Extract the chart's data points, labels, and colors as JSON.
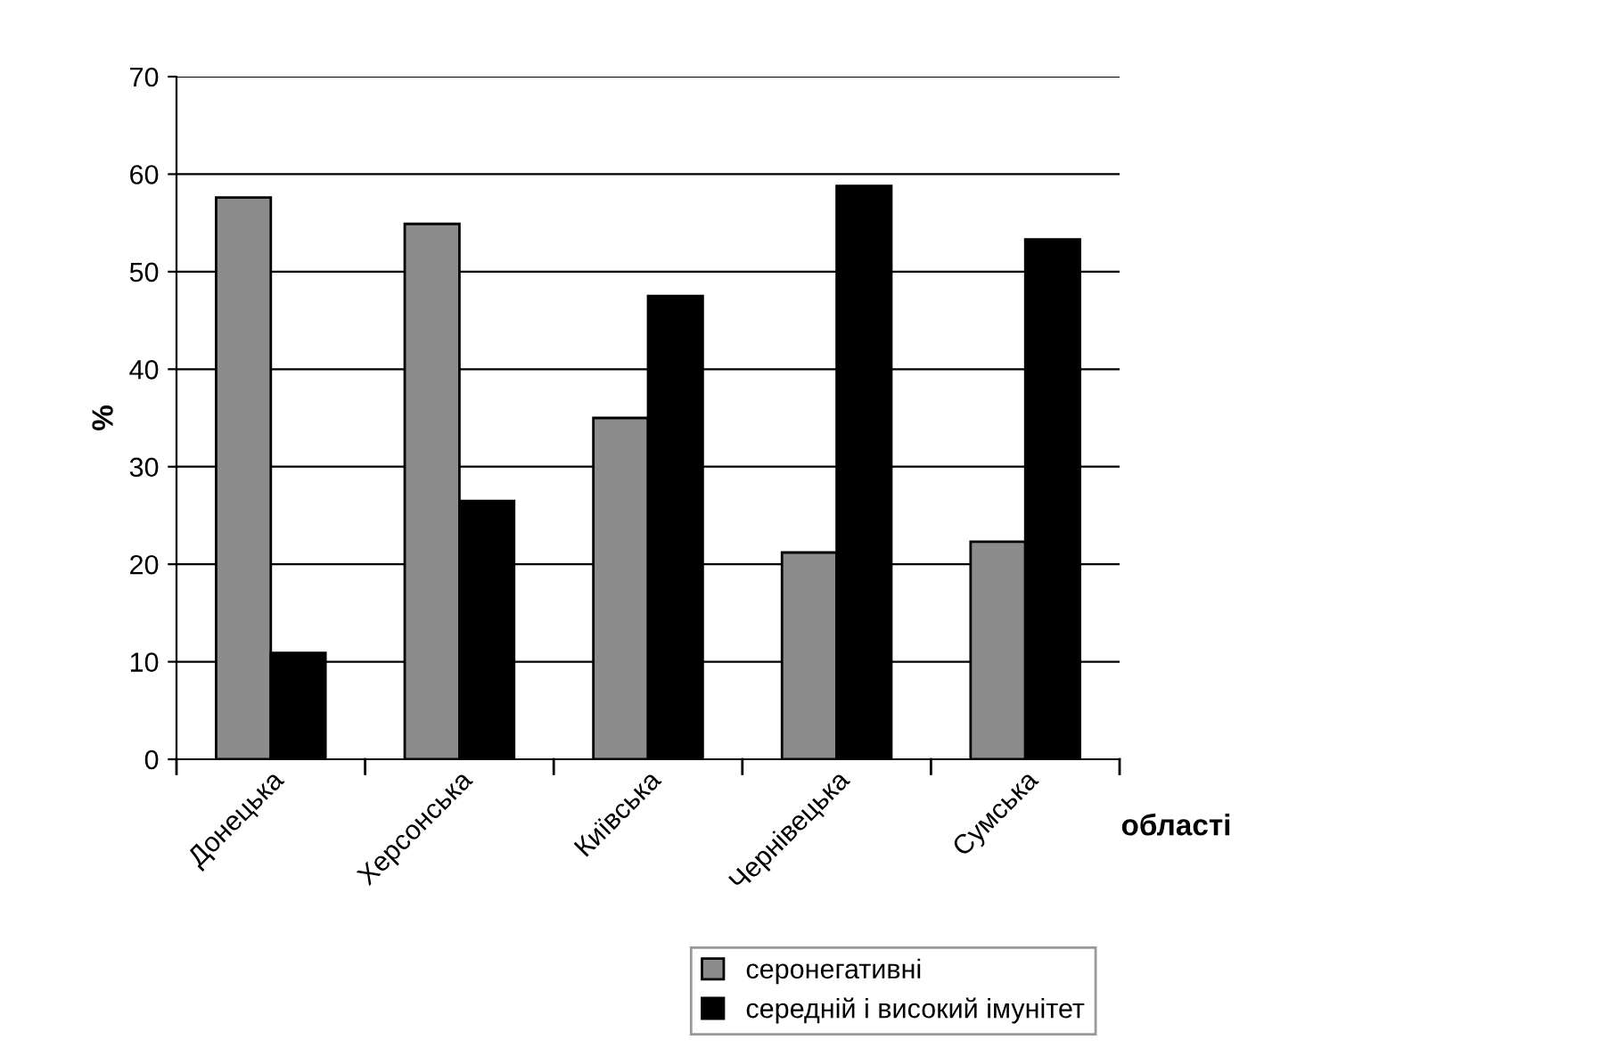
{
  "chart_data": {
    "type": "bar",
    "xlabel": "області",
    "ylabel": "%",
    "categories": [
      "Донецька",
      "Херсонська",
      "Київська",
      "Чернівецька",
      "Сумська"
    ],
    "series": [
      {
        "name": "серонегативні",
        "color": "#8c8c8c",
        "values": [
          57.6,
          54.9,
          35,
          21.2,
          22.3
        ]
      },
      {
        "name": "середній і високий імунітет",
        "color": "#000000",
        "values": [
          10.9,
          26.5,
          47.5,
          58.8,
          53.3
        ]
      }
    ],
    "ylim": [
      0,
      70
    ],
    "yticks": [
      0,
      10,
      20,
      30,
      40,
      50,
      60,
      70
    ],
    "grid": "y",
    "legend": "bottom"
  }
}
